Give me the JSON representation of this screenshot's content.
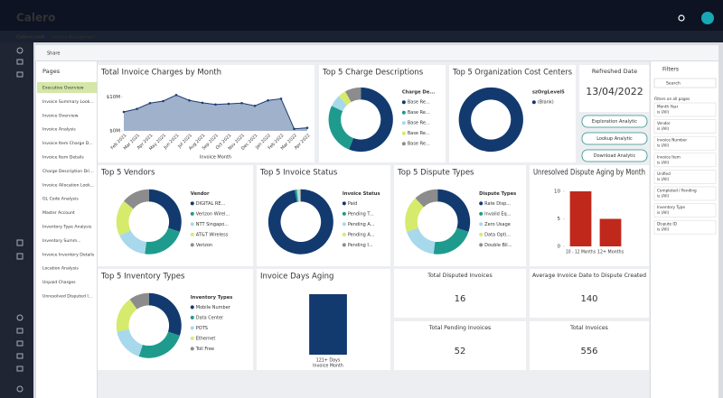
{
  "header": {
    "logo": "Calero",
    "breadcrumb": [
      "Calero.com",
      "Invoice Management"
    ]
  },
  "toolbar": {
    "share": "Share"
  },
  "pages": {
    "title": "Pages",
    "selected": 0,
    "items": [
      "Executive Overview",
      "Invoice Summary Look...",
      "Invoice Overview",
      "Invoice Analysis",
      "Invoice Item Charge D...",
      "Invoice Item Details",
      "Charge Description Dri...",
      "Invoice Allocation Look...",
      "GL Code Analysis",
      "Master Account",
      "Inventory Type Analysis",
      "Inventory Summ...",
      "Invoice Inventory Details",
      "Location Analysis",
      "Unpaid Charges",
      "Unresolved Disputed I..."
    ]
  },
  "refreshed": {
    "label": "Refreshed Date",
    "date": "13/04/2022"
  },
  "buttons": [
    "Exploration Analytic",
    "Lookup Analytic",
    "Download Analytic"
  ],
  "cards": [
    {
      "title": "Total Disputed Invoices",
      "value": 16,
      "color": "#c8611b"
    },
    {
      "title": "Average Invoice Date to Dispute Created",
      "value": 140,
      "color": "#333333"
    },
    {
      "title": "Total Pending Invoices",
      "value": 52,
      "color": "#333333"
    },
    {
      "title": "Total Invoices",
      "value": 556,
      "color": "#333333"
    }
  ],
  "filters": {
    "title": "Filters",
    "search": "Search",
    "section": "Filters on all pages",
    "items": [
      {
        "name": "Month Year",
        "state": "is (All)"
      },
      {
        "name": "Vendor",
        "state": "is (All)"
      },
      {
        "name": "Invoice Number",
        "state": "is (All)"
      },
      {
        "name": "Invoice Item",
        "state": "is (All)"
      },
      {
        "name": "Unified",
        "state": "is (All)"
      },
      {
        "name": "Completed / Pending",
        "state": "is (All)"
      },
      {
        "name": "Inventory Type",
        "state": "is (All)"
      },
      {
        "name": "Dispute ID",
        "state": "is (All)"
      }
    ]
  },
  "chart_data": [
    {
      "type": "area",
      "title": "Total Invoice Charges by Month",
      "x_label": "Invoice Month",
      "color": "#8fa3c2",
      "line_color": "#1e3d73",
      "categories": [
        "Feb 2021",
        "Mar 2021",
        "Apr 2021",
        "May 2021",
        "Jun 2021",
        "Jul 2021",
        "Aug 2021",
        "Sep 2021",
        "Oct 2021",
        "Nov 2021",
        "Dec 2021",
        "Jan 2022",
        "Feb 2022",
        "Mar 2022",
        "Apr 2022"
      ],
      "values": [
        5.6,
        6.5,
        8.2,
        8.8,
        10.6,
        9.0,
        8.3,
        7.8,
        8.0,
        8.2,
        7.4,
        9.0,
        9.5,
        0.6,
        0.9
      ],
      "ylim": [
        0,
        12
      ],
      "yticks": [
        {
          "value": 0,
          "label": "$0M"
        },
        {
          "value": 10,
          "label": "$10M"
        }
      ]
    },
    {
      "type": "donut",
      "title": "Top 5 Charge Descriptions",
      "legend_title": "Charge De...",
      "categories": [
        "Base Re...",
        "Base Re...",
        "Base Re...",
        "Base Re...",
        "Base Re..."
      ],
      "values": [
        56,
        26,
        6,
        4,
        8
      ],
      "colors": [
        "#123a6f",
        "#1f9b8e",
        "#a7d8eb",
        "#d6ea6c",
        "#8c8c8c"
      ]
    },
    {
      "type": "donut",
      "title": "Top 5 Organization Cost Centers",
      "legend_title": "szOrgLevel5",
      "categories": [
        "(Blank)"
      ],
      "values": [
        100
      ],
      "colors": [
        "#123a6f"
      ]
    },
    {
      "type": "donut",
      "title": "Top 5 Vendors",
      "legend_title": "Vendor",
      "categories": [
        "DIGITAL RE...",
        "Verizon Wirel...",
        "NTT Singapo...",
        "AT&T Wireless",
        "Verizon"
      ],
      "values": [
        30,
        22,
        16,
        18,
        14
      ],
      "colors": [
        "#123a6f",
        "#1f9b8e",
        "#a7d8eb",
        "#d6ea6c",
        "#8c8c8c"
      ]
    },
    {
      "type": "donut",
      "title": "Top 5 Invoice Status",
      "legend_title": "Invoice Status",
      "categories": [
        "Paid",
        "Pending T...",
        "Pending A...",
        "Pending A...",
        "Pending I..."
      ],
      "values": [
        97,
        1,
        1,
        0.5,
        0.5
      ],
      "colors": [
        "#123a6f",
        "#1f9b8e",
        "#a7d8eb",
        "#d6ea6c",
        "#8c8c8c"
      ]
    },
    {
      "type": "donut",
      "title": "Top 5 Dispute Types",
      "legend_title": "Dispute Types",
      "categories": [
        "Rate Disp...",
        "Invalid Eq...",
        "Zero Usage",
        "Data Opti...",
        "Double Bil..."
      ],
      "values": [
        30,
        22,
        18,
        18,
        12
      ],
      "colors": [
        "#123a6f",
        "#1f9b8e",
        "#a7d8eb",
        "#d6ea6c",
        "#8c8c8c"
      ]
    },
    {
      "type": "bar",
      "title": "Unresolved Dispute Aging by Month",
      "color": "#c0281c",
      "categories": [
        "10 - 12 Months",
        "12+ Months"
      ],
      "values": [
        10,
        5
      ],
      "ylim": [
        0,
        10
      ],
      "yticks": [
        0,
        5,
        10
      ]
    },
    {
      "type": "donut",
      "title": "Top 5 Inventory Types",
      "legend_title": "Inventory Types",
      "categories": [
        "Mobile Number",
        "Data Center",
        "POTS",
        "Ethernet",
        "Toll Free"
      ],
      "values": [
        30,
        25,
        17,
        18,
        10
      ],
      "colors": [
        "#123a6f",
        "#1f9b8e",
        "#a7d8eb",
        "#d6ea6c",
        "#8c8c8c"
      ]
    },
    {
      "type": "bar",
      "title": "Invoice Days Aging",
      "x_label": "Invoice Month",
      "color": "#123a6f",
      "categories": [
        "121+ Days"
      ],
      "values": [
        420
      ]
    }
  ]
}
